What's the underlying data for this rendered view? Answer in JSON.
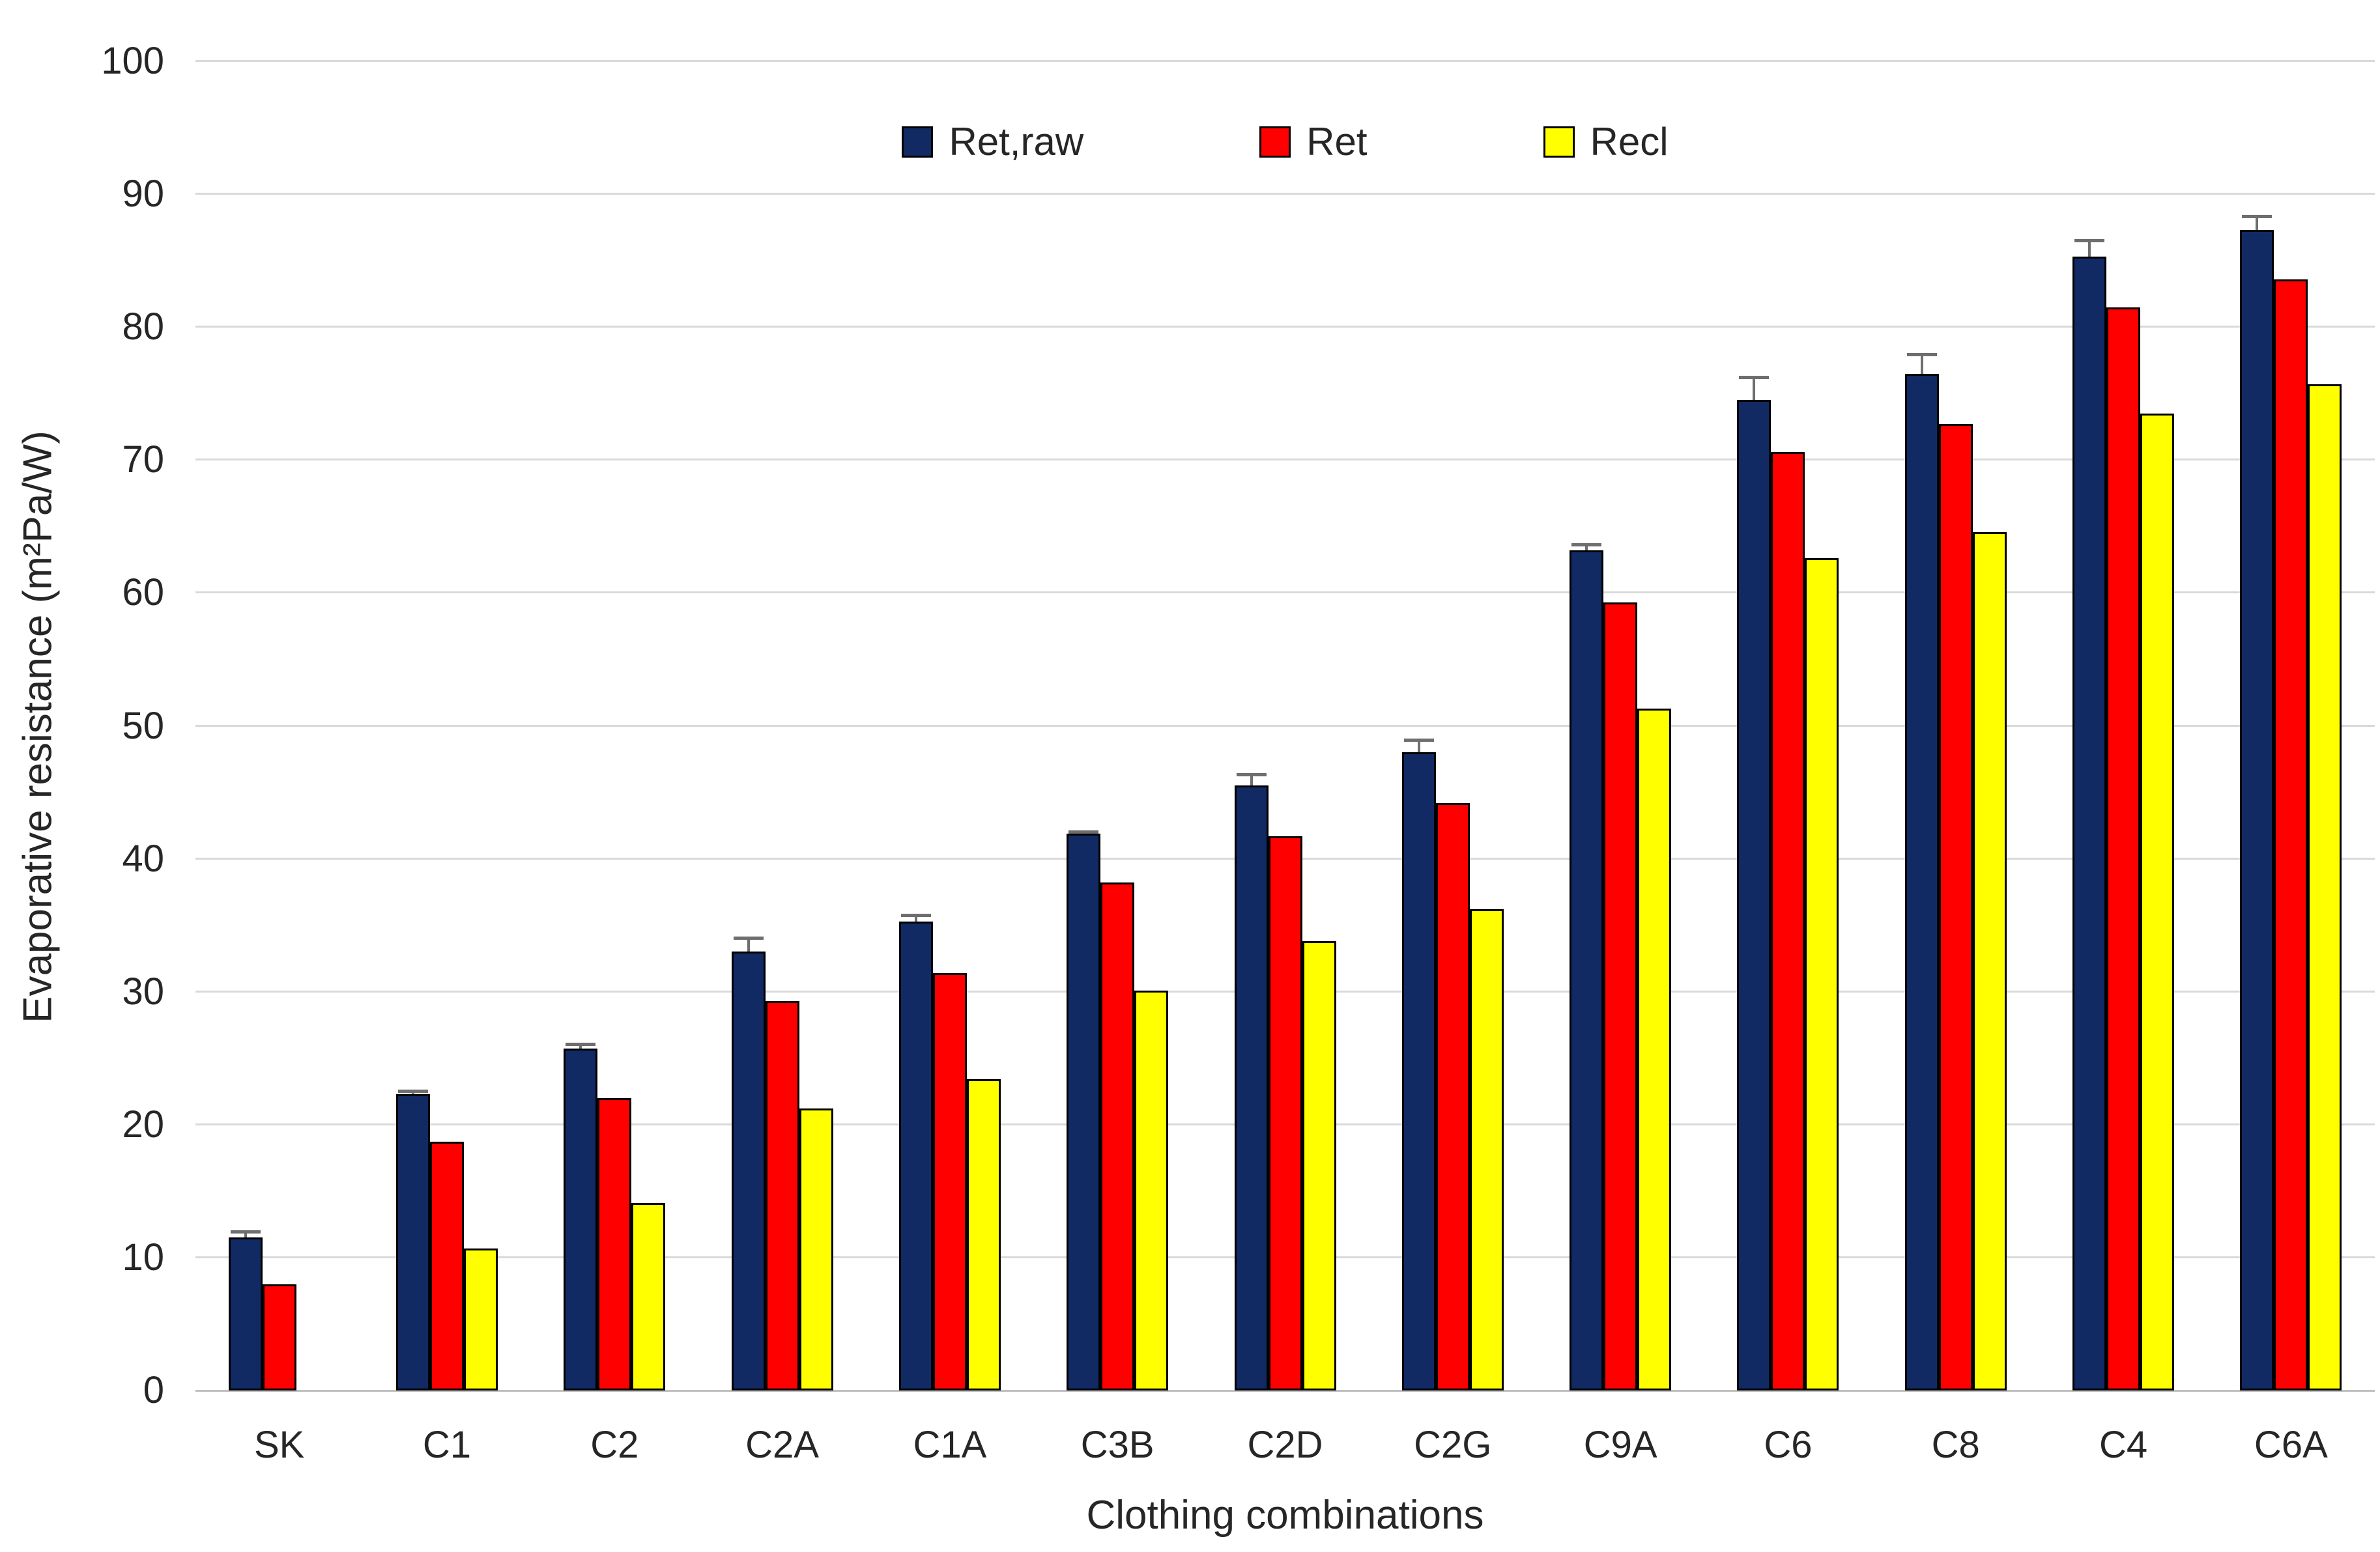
{
  "chart_data": {
    "type": "bar",
    "title": "",
    "xlabel": "Clothing combinations",
    "ylabel": "Evaporative resistance (m²Pa/W)",
    "ylim": [
      0,
      100
    ],
    "yticks": [
      0,
      10,
      20,
      30,
      40,
      50,
      60,
      70,
      80,
      90,
      100
    ],
    "grid": true,
    "legend_position": "top",
    "categories": [
      "SK",
      "C1",
      "C2",
      "C2A",
      "C1A",
      "C3B",
      "C2D",
      "C2G",
      "C9A",
      "C6",
      "C8",
      "C4",
      "C6A"
    ],
    "series": [
      {
        "name": "Ret,raw",
        "color": "#122a64",
        "values": [
          11.5,
          22.3,
          25.7,
          33.0,
          35.3,
          41.9,
          45.5,
          48.0,
          63.2,
          74.5,
          76.5,
          85.3,
          87.3
        ],
        "errors_plus": [
          0.5,
          0.3,
          0.4,
          1.1,
          0.5,
          0.2,
          0.9,
          1.0,
          0.5,
          1.8,
          1.5,
          1.3,
          1.1
        ]
      },
      {
        "name": "Ret",
        "color": "#ff0000",
        "values": [
          8.0,
          18.7,
          22.0,
          29.3,
          31.4,
          38.2,
          41.7,
          44.2,
          59.3,
          70.6,
          72.7,
          81.5,
          83.6
        ]
      },
      {
        "name": "Recl",
        "color": "#ffff00",
        "values": [
          null,
          10.7,
          14.1,
          21.2,
          23.4,
          30.1,
          33.8,
          36.2,
          51.3,
          62.6,
          64.6,
          73.5,
          75.7
        ]
      }
    ],
    "colors": {
      "gridline": "#d9d9d9",
      "axis": "#bfbfbf",
      "error_bar": "#6e6e6e",
      "text": "#262626",
      "background": "#ffffff"
    }
  }
}
